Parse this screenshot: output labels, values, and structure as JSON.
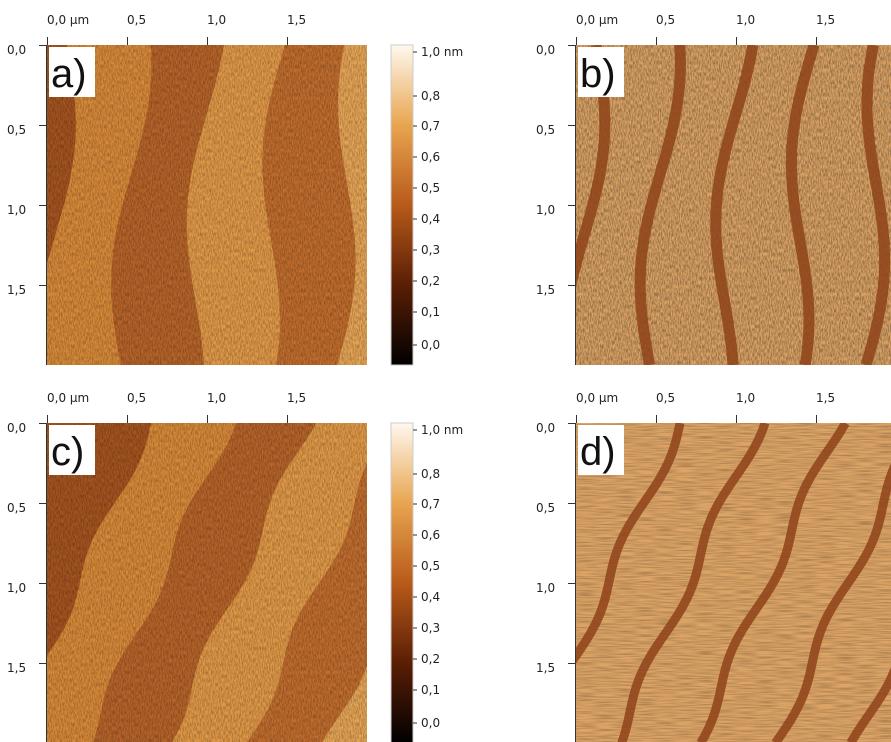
{
  "panels": [
    {
      "label": "a)",
      "x_ticks": [
        "0,0 µm",
        "0,5",
        "1,0",
        "1,5"
      ],
      "y_ticks": [
        "0,0",
        "0,5",
        "1,0",
        "1,5"
      ],
      "colorbar": [
        "1,0 nm",
        "0,8",
        "0,7",
        "0,6",
        "0,5",
        "0,4",
        "0,3",
        "0,2",
        "0,1",
        "0,0"
      ]
    },
    {
      "label": "b)",
      "x_ticks": [
        "0,0 µm",
        "0,5",
        "1,0",
        "1,5"
      ],
      "y_ticks": [
        "0,0",
        "0,5",
        "1,0",
        "1,5"
      ]
    },
    {
      "label": "c)",
      "x_ticks": [
        "0,0 µm",
        "0,5",
        "1,0",
        "1,5"
      ],
      "y_ticks": [
        "0,0",
        "0,5",
        "1,0",
        "1,5"
      ],
      "colorbar": [
        "1,0 nm",
        "0,8",
        "0,7",
        "0,6",
        "0,5",
        "0,4",
        "0,3",
        "0,2",
        "0,1",
        "0,0"
      ]
    },
    {
      "label": "d)",
      "x_ticks": [
        "0,0 µm",
        "0,5",
        "1,0",
        "1,5"
      ],
      "y_ticks": [
        "0,0",
        "0,5",
        "1,0",
        "1,5"
      ]
    }
  ]
}
